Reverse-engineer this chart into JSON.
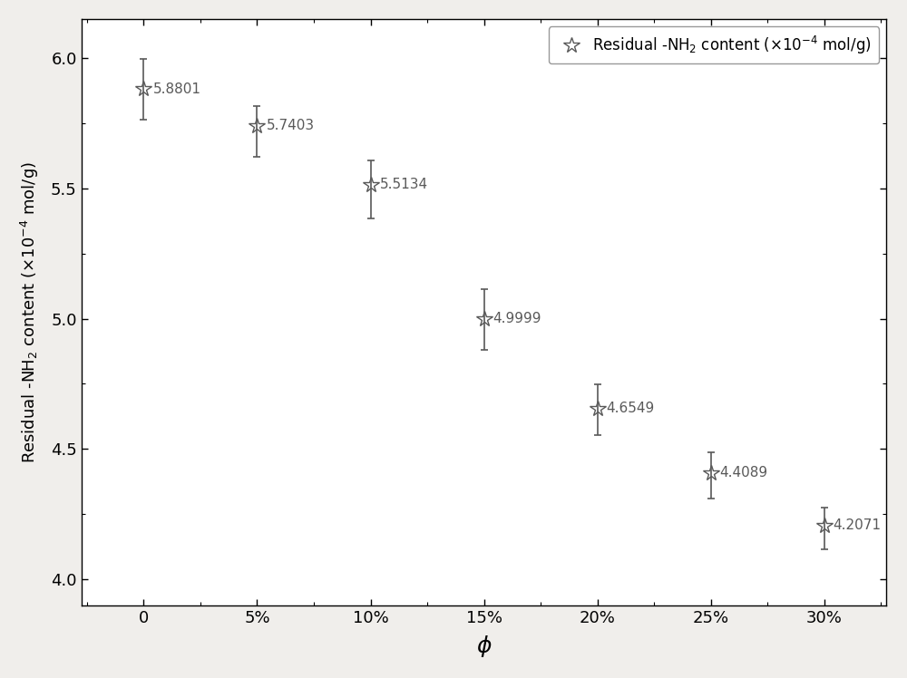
{
  "x_labels": [
    "0",
    "5%",
    "10%",
    "15%",
    "20%",
    "25%",
    "30%"
  ],
  "x_positions": [
    0,
    1,
    2,
    3,
    4,
    5,
    6
  ],
  "y_values": [
    5.8801,
    5.7403,
    5.5134,
    4.9999,
    4.6549,
    4.4089,
    4.2071
  ],
  "y_errors_upper": [
    0.115,
    0.075,
    0.095,
    0.115,
    0.095,
    0.08,
    0.07
  ],
  "y_errors_lower": [
    0.115,
    0.12,
    0.13,
    0.12,
    0.1,
    0.1,
    0.09
  ],
  "marker_color": "#595959",
  "line_color": "#595959",
  "fig_background_color": "#f0eeeb",
  "plot_background_color": "#ffffff",
  "title": "",
  "xlabel": "$\\phi$",
  "ylabel": "Residual -NH$_2$ content ($\\times$10$^{-4}$ mol/g)",
  "ylim": [
    3.9,
    6.15
  ],
  "xlim": [
    -0.55,
    6.55
  ],
  "legend_label": "Residual -NH$_2$ content ($\\times$10$^{-4}$ mol/g)",
  "label_values": [
    "5.8801",
    "5.7403",
    "5.5134",
    "4.9999",
    "4.6549",
    "4.4089",
    "4.2071"
  ],
  "yticks": [
    4.0,
    4.5,
    5.0,
    5.5,
    6.0
  ],
  "marker_size": 13,
  "capsize": 3,
  "xlabel_fontsize": 18,
  "ylabel_fontsize": 13,
  "tick_fontsize": 13,
  "legend_fontsize": 12,
  "label_fontsize": 11
}
